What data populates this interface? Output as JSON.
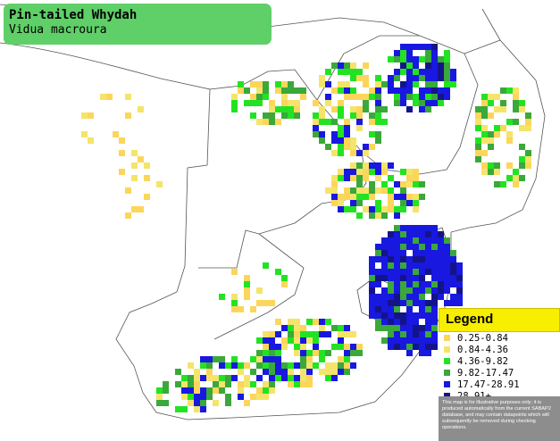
{
  "title": "Pin-tailed Whydah",
  "subtitle": "Vidua macroura",
  "legend": {
    "heading": "Legend",
    "items": [
      {
        "label": "0.25-0.84",
        "color": "#fcd65a"
      },
      {
        "label": "0.84-4.36",
        "color": "#f5e46a"
      },
      {
        "label": "4.36-9.82",
        "color": "#22e322"
      },
      {
        "label": "9.82-17.47",
        "color": "#3aa83a"
      },
      {
        "label": "17.47-28.91",
        "color": "#1818e0"
      },
      {
        "label": "28.91+",
        "color": "#14148a"
      }
    ],
    "note": "This map is for illustrative purposes only; it is produced automatically from the current SABAP2 database, and may contain datapoints which will subsequently be removed during checking operations."
  }
}
